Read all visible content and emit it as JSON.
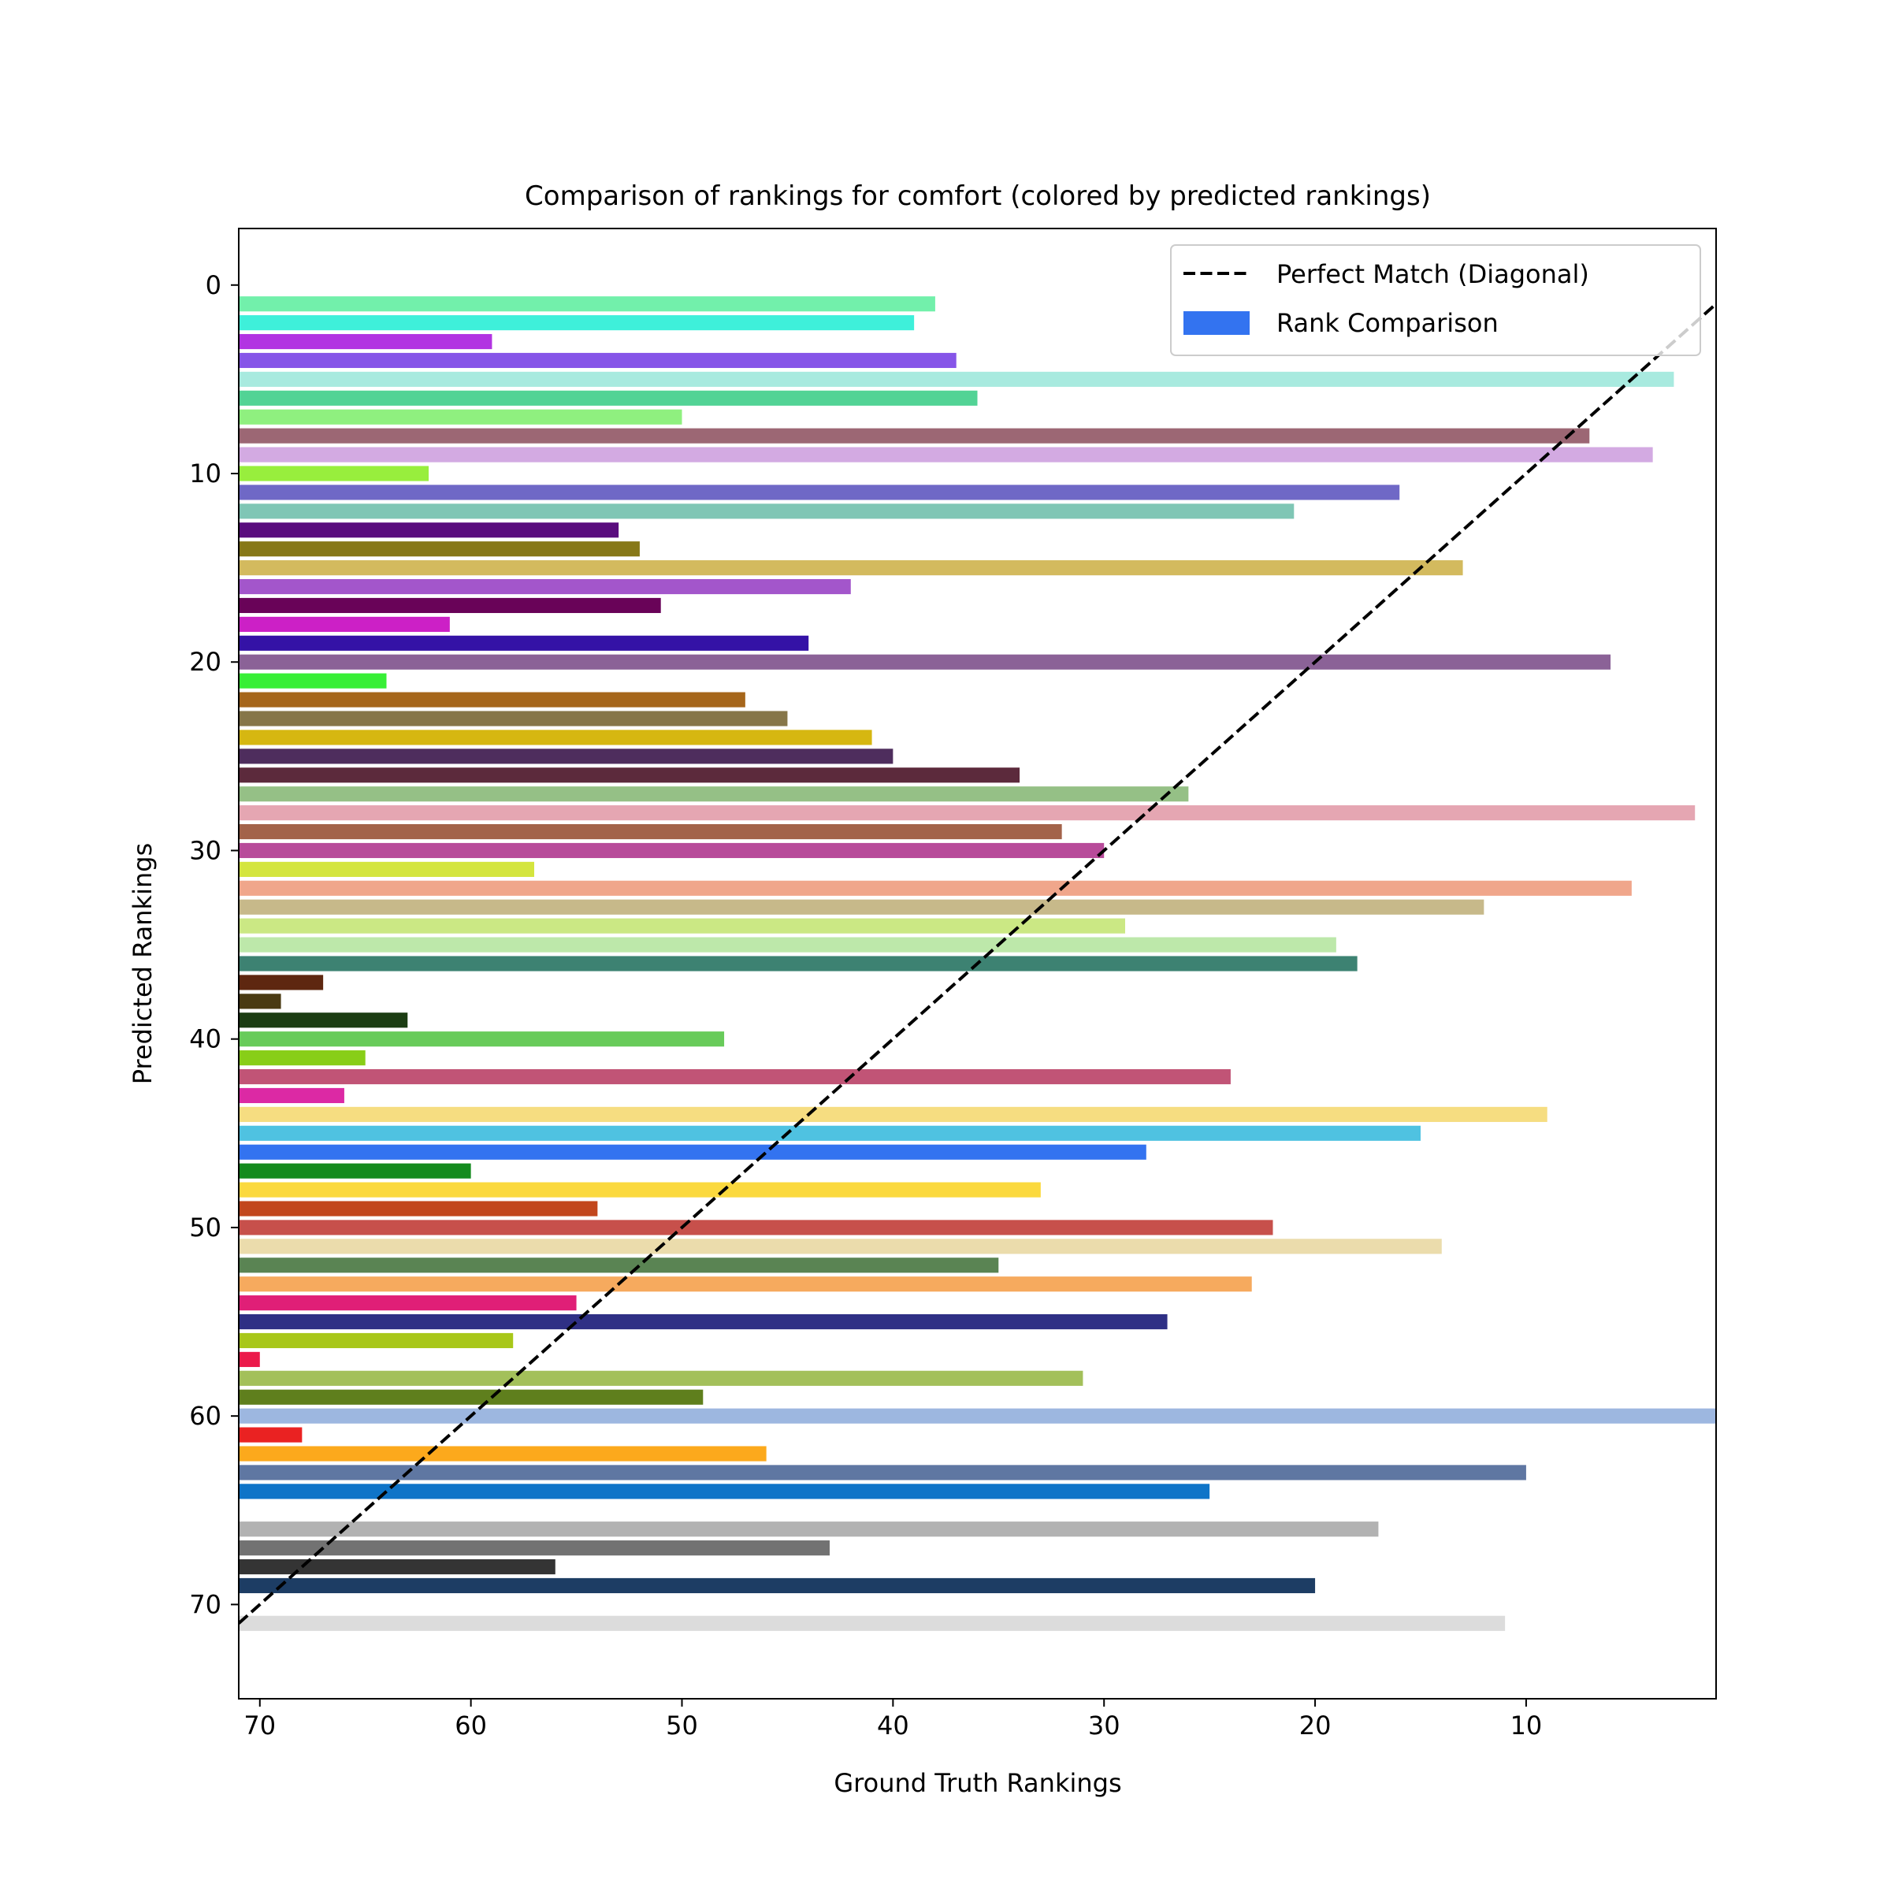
{
  "chart_data": {
    "type": "bar",
    "orientation": "horizontal",
    "title": "Comparison of rankings for comfort (colored by predicted rankings)",
    "xlabel": "Ground Truth Rankings",
    "ylabel": "Predicted Rankings",
    "xlim": [
      71,
      1
    ],
    "ylim": [
      75,
      -3
    ],
    "x_inverted": true,
    "y_inverted": true,
    "grid": false,
    "legend_position": "top-right",
    "x_ticks": [
      70,
      60,
      50,
      40,
      30,
      20,
      10
    ],
    "y_ticks": [
      0,
      10,
      20,
      30,
      40,
      50,
      60,
      70
    ],
    "legend": {
      "diagonal_label": "Perfect Match (Diagonal)",
      "bars_label": "Rank Comparison",
      "bars_color": "#3373f0"
    },
    "diagonal": {
      "from": [
        71,
        71
      ],
      "to": [
        1,
        1
      ],
      "color": "#000000",
      "style": "dashed"
    },
    "bars": [
      {
        "predicted": 1,
        "ground_truth": 38,
        "color": "#72f0ab"
      },
      {
        "predicted": 2,
        "ground_truth": 39,
        "color": "#3ef0da"
      },
      {
        "predicted": 3,
        "ground_truth": 59,
        "color": "#b233e2"
      },
      {
        "predicted": 4,
        "ground_truth": 37,
        "color": "#8655e8"
      },
      {
        "predicted": 5,
        "ground_truth": 3,
        "color": "#a8eadf"
      },
      {
        "predicted": 6,
        "ground_truth": 36,
        "color": "#52d395"
      },
      {
        "predicted": 7,
        "ground_truth": 50,
        "color": "#8ff07f"
      },
      {
        "predicted": 8,
        "ground_truth": 7,
        "color": "#9c6774"
      },
      {
        "predicted": 9,
        "ground_truth": 4,
        "color": "#d3aae2"
      },
      {
        "predicted": 10,
        "ground_truth": 62,
        "color": "#98ee3d"
      },
      {
        "predicted": 11,
        "ground_truth": 16,
        "color": "#6f68c6"
      },
      {
        "predicted": 12,
        "ground_truth": 21,
        "color": "#7fc6b5"
      },
      {
        "predicted": 13,
        "ground_truth": 53,
        "color": "#5a0d7e"
      },
      {
        "predicted": 14,
        "ground_truth": 52,
        "color": "#877818"
      },
      {
        "predicted": 15,
        "ground_truth": 13,
        "color": "#d3ba5e"
      },
      {
        "predicted": 16,
        "ground_truth": 42,
        "color": "#a356cb"
      },
      {
        "predicted": 17,
        "ground_truth": 51,
        "color": "#690358"
      },
      {
        "predicted": 18,
        "ground_truth": 61,
        "color": "#cc20c6"
      },
      {
        "predicted": 19,
        "ground_truth": 44,
        "color": "#3412a6"
      },
      {
        "predicted": 20,
        "ground_truth": 6,
        "color": "#8b6297"
      },
      {
        "predicted": 21,
        "ground_truth": 64,
        "color": "#37ef36"
      },
      {
        "predicted": 22,
        "ground_truth": 47,
        "color": "#a6661b"
      },
      {
        "predicted": 23,
        "ground_truth": 45,
        "color": "#867649"
      },
      {
        "predicted": 24,
        "ground_truth": 41,
        "color": "#d6b711"
      },
      {
        "predicted": 25,
        "ground_truth": 40,
        "color": "#4e2d5d"
      },
      {
        "predicted": 26,
        "ground_truth": 34,
        "color": "#5c2a3c"
      },
      {
        "predicted": 27,
        "ground_truth": 26,
        "color": "#95c086"
      },
      {
        "predicted": 28,
        "ground_truth": 2,
        "color": "#e5a6b2"
      },
      {
        "predicted": 29,
        "ground_truth": 32,
        "color": "#a3634a"
      },
      {
        "predicted": 30,
        "ground_truth": 30,
        "color": "#b84b9a"
      },
      {
        "predicted": 31,
        "ground_truth": 57,
        "color": "#d4e53e"
      },
      {
        "predicted": 32,
        "ground_truth": 5,
        "color": "#f0a68b"
      },
      {
        "predicted": 33,
        "ground_truth": 12,
        "color": "#c7b98a"
      },
      {
        "predicted": 34,
        "ground_truth": 29,
        "color": "#cbe884"
      },
      {
        "predicted": 35,
        "ground_truth": 19,
        "color": "#bde8aa"
      },
      {
        "predicted": 36,
        "ground_truth": 18,
        "color": "#3d8272"
      },
      {
        "predicted": 37,
        "ground_truth": 67,
        "color": "#5e2710"
      },
      {
        "predicted": 38,
        "ground_truth": 69,
        "color": "#4a3a13"
      },
      {
        "predicted": 39,
        "ground_truth": 63,
        "color": "#1c3d13"
      },
      {
        "predicted": 40,
        "ground_truth": 48,
        "color": "#68cb5a"
      },
      {
        "predicted": 41,
        "ground_truth": 65,
        "color": "#88ce18"
      },
      {
        "predicted": 42,
        "ground_truth": 24,
        "color": "#c15476"
      },
      {
        "predicted": 43,
        "ground_truth": 66,
        "color": "#dc29a4"
      },
      {
        "predicted": 44,
        "ground_truth": 9,
        "color": "#f6dd81"
      },
      {
        "predicted": 45,
        "ground_truth": 15,
        "color": "#4fc2e1"
      },
      {
        "predicted": 46,
        "ground_truth": 28,
        "color": "#3373f0"
      },
      {
        "predicted": 47,
        "ground_truth": 60,
        "color": "#148b1e"
      },
      {
        "predicted": 48,
        "ground_truth": 33,
        "color": "#fbd93e"
      },
      {
        "predicted": 49,
        "ground_truth": 54,
        "color": "#c2471d"
      },
      {
        "predicted": 50,
        "ground_truth": 22,
        "color": "#c7504b"
      },
      {
        "predicted": 51,
        "ground_truth": 14,
        "color": "#ebdcac"
      },
      {
        "predicted": 52,
        "ground_truth": 35,
        "color": "#5a8453"
      },
      {
        "predicted": 53,
        "ground_truth": 23,
        "color": "#f6aa5e"
      },
      {
        "predicted": 54,
        "ground_truth": 55,
        "color": "#e01f77"
      },
      {
        "predicted": 55,
        "ground_truth": 27,
        "color": "#2f3085"
      },
      {
        "predicted": 56,
        "ground_truth": 58,
        "color": "#a8c719"
      },
      {
        "predicted": 57,
        "ground_truth": 70,
        "color": "#eb1a4a"
      },
      {
        "predicted": 58,
        "ground_truth": 31,
        "color": "#a3c05a"
      },
      {
        "predicted": 59,
        "ground_truth": 49,
        "color": "#5f7f1d"
      },
      {
        "predicted": 60,
        "ground_truth": 1,
        "color": "#9db7e0"
      },
      {
        "predicted": 61,
        "ground_truth": 68,
        "color": "#ea2222"
      },
      {
        "predicted": 62,
        "ground_truth": 46,
        "color": "#fca91c"
      },
      {
        "predicted": 63,
        "ground_truth": 10,
        "color": "#5f77a2"
      },
      {
        "predicted": 64,
        "ground_truth": 25,
        "color": "#0f74c8"
      },
      {
        "predicted": 65,
        "ground_truth": 71,
        "color": "#ffffff"
      },
      {
        "predicted": 66,
        "ground_truth": 17,
        "color": "#b2b2b2"
      },
      {
        "predicted": 67,
        "ground_truth": 43,
        "color": "#727272"
      },
      {
        "predicted": 68,
        "ground_truth": 56,
        "color": "#343434"
      },
      {
        "predicted": 69,
        "ground_truth": 20,
        "color": "#1d3d64"
      },
      {
        "predicted": 71,
        "ground_truth": 11,
        "color": "#dcdcdc"
      }
    ]
  }
}
